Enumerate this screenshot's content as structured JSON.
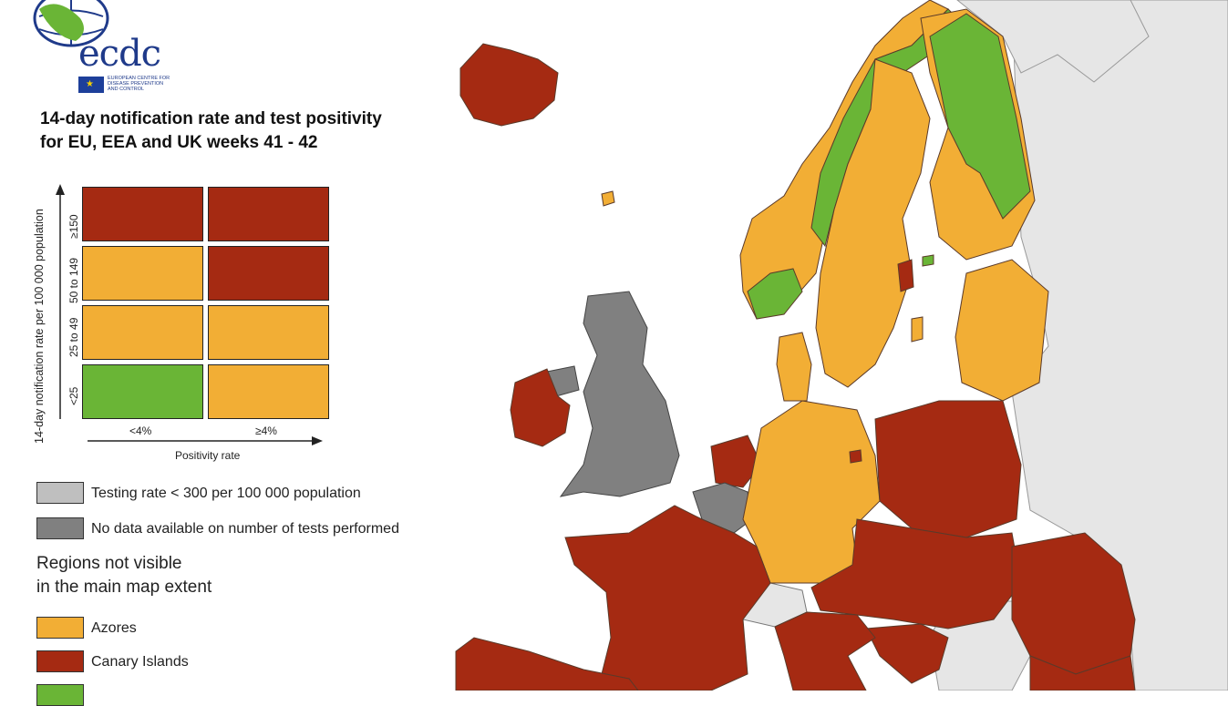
{
  "logo": {
    "wordmark": "ecdc",
    "subtitle": "EUROPEAN CENTRE FOR DISEASE PREVENTION AND CONTROL"
  },
  "title": {
    "line1": "14-day notification rate and test positivity",
    "line2": "for EU, EEA and UK weeks 41 - 42"
  },
  "matrix": {
    "y_axis_label": "14-day notification rate per 100 000 population",
    "x_axis_label": "Positivity rate",
    "rows": [
      "≥150",
      "50 to 149",
      "25 to 49",
      "<25"
    ],
    "columns": [
      "<4%",
      "≥4%"
    ],
    "cells": [
      [
        "red",
        "red"
      ],
      [
        "orange",
        "red"
      ],
      [
        "orange",
        "orange"
      ],
      [
        "green",
        "orange"
      ]
    ]
  },
  "legend": [
    {
      "color": "lightgrey",
      "label": "Testing rate < 300 per 100 000 population"
    },
    {
      "color": "darkgrey",
      "label": "No data available on number of tests performed"
    }
  ],
  "regions_not_visible": {
    "title_line1": "Regions not visible",
    "title_line2": "in the main map extent",
    "items": [
      {
        "color": "orange",
        "label": "Azores"
      },
      {
        "color": "red",
        "label": "Canary Islands"
      },
      {
        "color": "green",
        "label": ""
      }
    ]
  },
  "colors": {
    "red": "#a52a12",
    "orange": "#f2ae35",
    "green": "#6ab536",
    "lightgrey": "#bfbfbf",
    "darkgrey": "#808080",
    "nonEU": "#e6e6e6",
    "sea": "#ffffff",
    "border": "#5a3a2a"
  }
}
